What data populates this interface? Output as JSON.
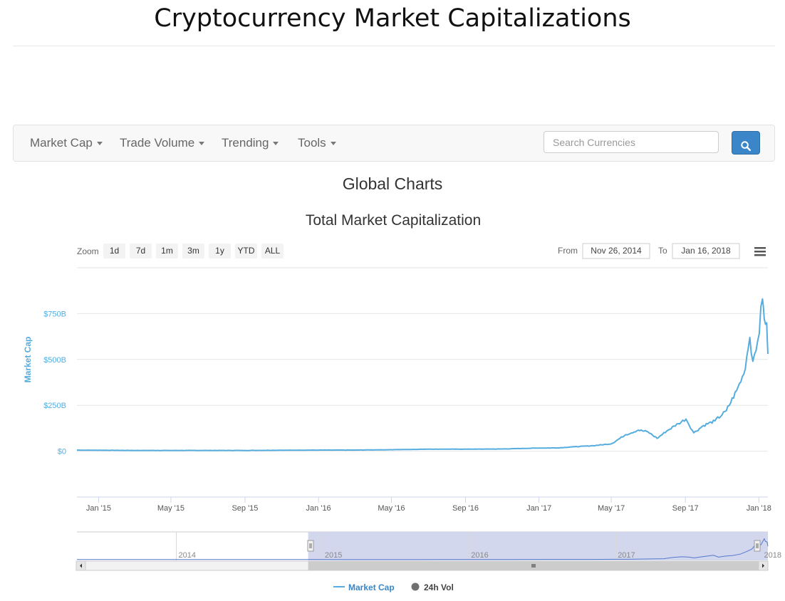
{
  "page": {
    "title": "Cryptocurrency Market Capitalizations"
  },
  "nav": {
    "items": [
      {
        "label": "Market Cap"
      },
      {
        "label": "Trade Volume"
      },
      {
        "label": "Trending"
      },
      {
        "label": "Tools"
      }
    ],
    "search": {
      "placeholder": "Search Currencies",
      "value": ""
    }
  },
  "section": {
    "title": "Global Charts"
  },
  "colors": {
    "market_cap": "#55acde",
    "vol": "#707070",
    "accent": "#3a86c8"
  },
  "chart_data": {
    "type": "line",
    "title": "Total Market Capitalization",
    "ylabel": "Market Cap",
    "y_ticks": [
      {
        "label": "$0",
        "value": 0
      },
      {
        "label": "$250B",
        "value": 250
      },
      {
        "label": "$500B",
        "value": 500
      },
      {
        "label": "$750B",
        "value": 750
      }
    ],
    "x_ticks": [
      {
        "label": "Jan '15",
        "date": "2015-01-01"
      },
      {
        "label": "May '15",
        "date": "2015-05-01"
      },
      {
        "label": "Sep '15",
        "date": "2015-09-01"
      },
      {
        "label": "Jan '16",
        "date": "2016-01-01"
      },
      {
        "label": "May '16",
        "date": "2016-05-01"
      },
      {
        "label": "Sep '16",
        "date": "2016-09-01"
      },
      {
        "label": "Jan '17",
        "date": "2017-01-01"
      },
      {
        "label": "May '17",
        "date": "2017-05-01"
      },
      {
        "label": "Sep '17",
        "date": "2017-09-01"
      },
      {
        "label": "Jan '18",
        "date": "2018-01-01"
      }
    ],
    "x_range": [
      "2014-11-26",
      "2018-01-16"
    ],
    "ylim": [
      -250,
      1000
    ],
    "series": [
      {
        "name": "Market Cap",
        "unit": "billion USD",
        "points": [
          [
            "2014-11-26",
            6
          ],
          [
            "2015-01-01",
            5
          ],
          [
            "2015-03-01",
            4
          ],
          [
            "2015-05-01",
            4
          ],
          [
            "2015-07-01",
            4
          ],
          [
            "2015-09-01",
            4
          ],
          [
            "2015-11-01",
            5
          ],
          [
            "2016-01-01",
            6
          ],
          [
            "2016-03-01",
            6
          ],
          [
            "2016-05-01",
            8
          ],
          [
            "2016-07-01",
            11
          ],
          [
            "2016-09-01",
            11
          ],
          [
            "2016-11-01",
            12
          ],
          [
            "2017-01-01",
            17
          ],
          [
            "2017-02-01",
            18
          ],
          [
            "2017-03-01",
            24
          ],
          [
            "2017-04-01",
            30
          ],
          [
            "2017-05-01",
            40
          ],
          [
            "2017-05-25",
            90
          ],
          [
            "2017-06-15",
            115
          ],
          [
            "2017-07-01",
            105
          ],
          [
            "2017-07-16",
            70
          ],
          [
            "2017-08-01",
            110
          ],
          [
            "2017-08-20",
            150
          ],
          [
            "2017-09-02",
            175
          ],
          [
            "2017-09-15",
            100
          ],
          [
            "2017-10-01",
            140
          ],
          [
            "2017-10-20",
            165
          ],
          [
            "2017-11-08",
            220
          ],
          [
            "2017-11-25",
            330
          ],
          [
            "2017-12-07",
            420
          ],
          [
            "2017-12-17",
            620
          ],
          [
            "2017-12-22",
            490
          ],
          [
            "2017-12-30",
            600
          ],
          [
            "2018-01-07",
            830
          ],
          [
            "2018-01-10",
            720
          ],
          [
            "2018-01-14",
            700
          ],
          [
            "2018-01-16",
            530
          ]
        ]
      },
      {
        "name": "24h Vol"
      }
    ],
    "legend_position": "bottom-center",
    "grid": true,
    "zoom": {
      "label": "Zoom",
      "buttons": [
        "1d",
        "7d",
        "1m",
        "3m",
        "1y",
        "YTD",
        "ALL"
      ]
    },
    "range": {
      "from_label": "From",
      "from": "Nov 26, 2014",
      "to_label": "To",
      "to": "Jan 16, 2018"
    },
    "navigator": {
      "year_labels": [
        {
          "label": "2014",
          "date": "2014-01-01"
        },
        {
          "label": "2015",
          "date": "2015-01-01"
        },
        {
          "label": "2016",
          "date": "2016-01-01"
        },
        {
          "label": "2017",
          "date": "2017-01-01"
        },
        {
          "label": "2018",
          "date": "2018-01-01"
        }
      ],
      "range": [
        "2013-04-28",
        "2018-01-16"
      ],
      "selected": [
        "2014-11-26",
        "2018-01-16"
      ]
    }
  }
}
